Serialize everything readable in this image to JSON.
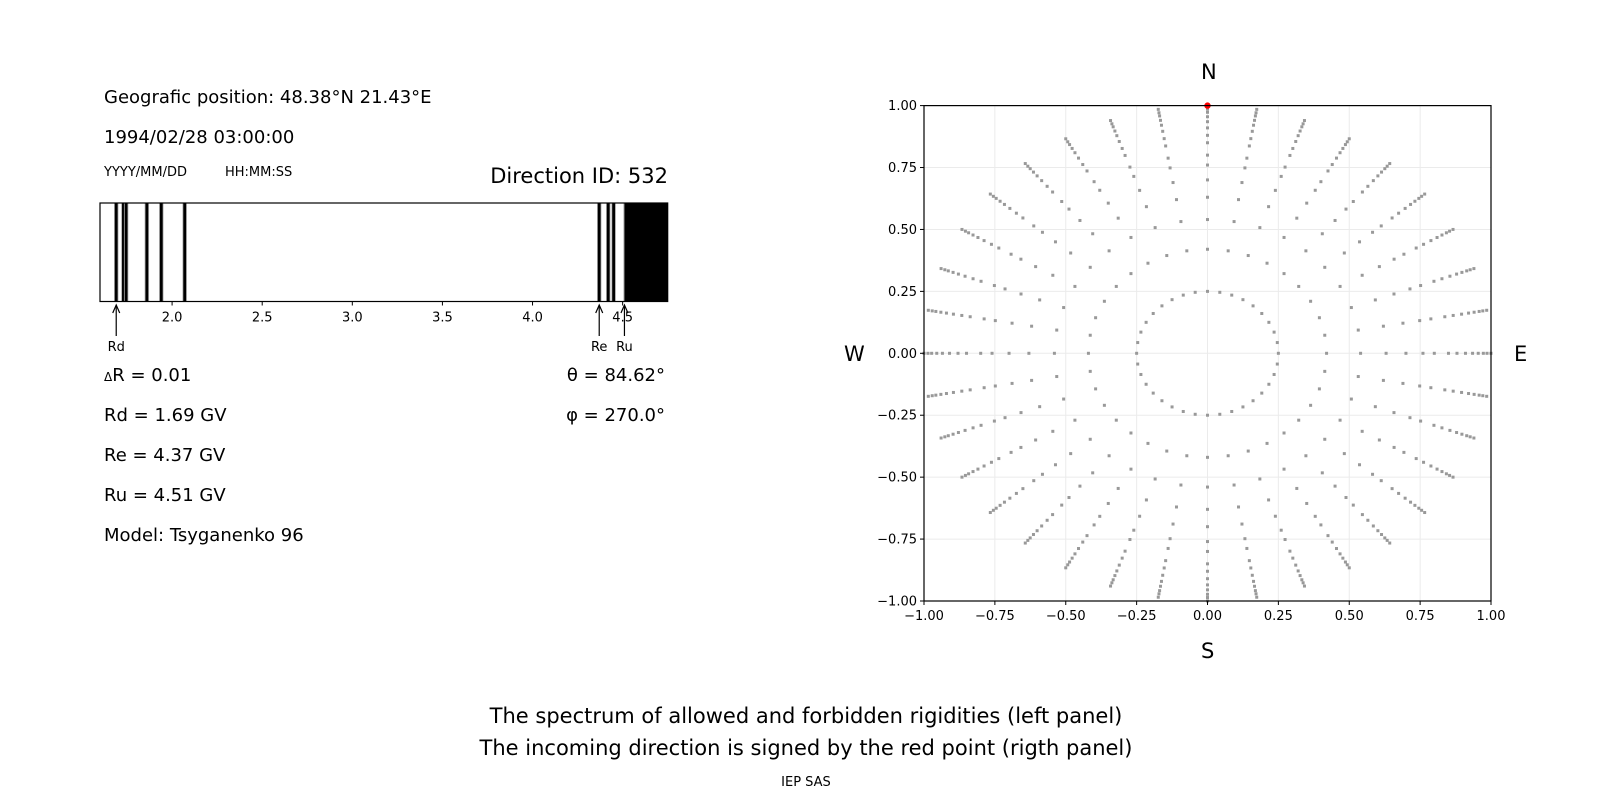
{
  "left_panel": {
    "position": "Geografic position: 48.38°N 21.43°E",
    "datetime": "1994/02/28 03:00:00",
    "date_format": "YYYY/MM/DD",
    "time_format": "HH:MM:SS",
    "direction_id": "Direction ID: 532",
    "delta_r": "R = 0.01",
    "delta_symbol": "Δ",
    "rd": "Rd = 1.69 GV",
    "re": "Re = 4.37 GV",
    "ru": "Ru = 4.51 GV",
    "model": "Model: Tsyganenko 96",
    "theta": "θ = 84.62°",
    "phi": "φ = 270.0°"
  },
  "right_panel": {
    "north": "N",
    "south": "S",
    "west": "W",
    "east": "E"
  },
  "caption": {
    "line1": "The spectrum of allowed and forbidden rigidities (left panel)",
    "line2": "The incoming direction is signed by the red point (rigth panel)",
    "credit": "IEP SAS"
  },
  "chart_data": [
    {
      "type": "bar",
      "description_type": "rigidity spectrum",
      "xlim": [
        1.6,
        4.75
      ],
      "xticks": [
        "2.0",
        "2.5",
        "3.0",
        "3.5",
        "4.0",
        "4.5"
      ],
      "xtick_values": [
        2.0,
        2.5,
        3.0,
        3.5,
        4.0,
        4.5
      ],
      "forbidden_lines": [
        1.69,
        1.73,
        1.745,
        1.86,
        1.94,
        2.07,
        4.37,
        4.42,
        4.45
      ],
      "forbidden_band": [
        4.51,
        4.75
      ],
      "line_width": 0.01,
      "markers": [
        {
          "label": "Rd",
          "value": 1.69
        },
        {
          "label": "Re",
          "value": 4.37
        },
        {
          "label": "Ru",
          "value": 4.51
        }
      ],
      "colors": {
        "forbidden": "#000000",
        "allowed": "#ffffff",
        "edge": "#aaaaaa"
      }
    },
    {
      "type": "scatter",
      "xlim": [
        -1,
        1
      ],
      "ylim": [
        -1,
        1
      ],
      "xticks": [
        "−1.00",
        "−0.75",
        "−0.50",
        "−0.25",
        "0.00",
        "0.25",
        "0.50",
        "0.75",
        "1.00"
      ],
      "yticks": [
        "−1.00",
        "−0.75",
        "−0.50",
        "−0.25",
        "0.00",
        "0.25",
        "0.50",
        "0.75",
        "1.00"
      ],
      "tick_values": [
        -1,
        -0.75,
        -0.5,
        -0.25,
        0,
        0.25,
        0.5,
        0.75,
        1
      ],
      "grid": true,
      "grid_azimuth_step_deg": 10,
      "grid_radii": [
        0.25,
        0.42,
        0.54,
        0.63,
        0.7,
        0.76,
        0.8,
        0.85,
        0.88,
        0.91,
        0.935,
        0.955,
        0.973,
        0.986,
        1.0
      ],
      "grid_point_color": "#999999",
      "highlight_point": {
        "x": 0.0,
        "y": 1.0,
        "color": "#ff0000"
      }
    }
  ]
}
